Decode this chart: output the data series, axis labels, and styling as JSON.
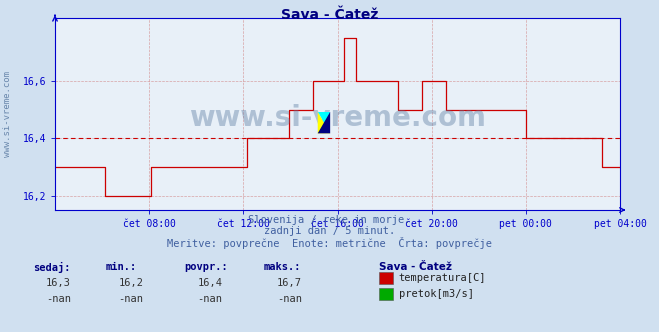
{
  "title": "Sava - Čatež",
  "title_color": "#000080",
  "bg_color": "#d0e0f0",
  "plot_bg_color": "#e8f0f8",
  "grid_color": "#d08080",
  "axis_color": "#0000cc",
  "line_color": "#cc0000",
  "watermark_color": "#5878a0",
  "ylim": [
    16.15,
    16.82
  ],
  "yticks": [
    16.2,
    16.4,
    16.6
  ],
  "xlabel_ticks": [
    "čet 08:00",
    "čet 12:00",
    "čet 16:00",
    "čet 20:00",
    "pet 00:00",
    "pet 04:00"
  ],
  "xtick_positions": [
    0.1667,
    0.3333,
    0.5,
    0.6667,
    0.8333,
    1.0
  ],
  "avg_line": 16.4,
  "avg_line_color": "#cc0000",
  "subtitle1": "Slovenija / reke in morje.",
  "subtitle2": "zadnji dan / 5 minut.",
  "subtitle3": "Meritve: povprečne  Enote: metrične  Črta: povprečje",
  "subtitle_color": "#4060a0",
  "legend_title": "Sava - Čatež",
  "legend_title_color": "#000080",
  "legend_items": [
    {
      "label": "temperatura[C]",
      "color": "#cc0000"
    },
    {
      "label": "pretok[m3/s]",
      "color": "#00aa00"
    }
  ],
  "stats_headers": [
    "sedaj:",
    "min.:",
    "povpr.:",
    "maks.:"
  ],
  "stats_values_temp": [
    "16,3",
    "16,2",
    "16,4",
    "16,7"
  ],
  "stats_values_flow": [
    "-nan",
    "-nan",
    "-nan",
    "-nan"
  ],
  "watermark": "www.si-vreme.com",
  "ylabel_text": "www.si-vreme.com",
  "temperature_data": [
    16.3,
    16.3,
    16.3,
    16.3,
    16.3,
    16.3,
    16.3,
    16.3,
    16.3,
    16.3,
    16.3,
    16.3,
    16.3,
    16.3,
    16.3,
    16.3,
    16.3,
    16.3,
    16.3,
    16.3,
    16.3,
    16.3,
    16.3,
    16.3,
    16.3,
    16.2,
    16.2,
    16.2,
    16.2,
    16.2,
    16.2,
    16.2,
    16.2,
    16.2,
    16.2,
    16.2,
    16.2,
    16.2,
    16.2,
    16.2,
    16.2,
    16.2,
    16.2,
    16.2,
    16.2,
    16.2,
    16.2,
    16.2,
    16.3,
    16.3,
    16.3,
    16.3,
    16.3,
    16.3,
    16.3,
    16.3,
    16.3,
    16.3,
    16.3,
    16.3,
    16.3,
    16.3,
    16.3,
    16.3,
    16.3,
    16.3,
    16.3,
    16.3,
    16.3,
    16.3,
    16.3,
    16.3,
    16.3,
    16.3,
    16.3,
    16.3,
    16.3,
    16.3,
    16.3,
    16.3,
    16.3,
    16.3,
    16.3,
    16.3,
    16.3,
    16.3,
    16.3,
    16.3,
    16.3,
    16.3,
    16.3,
    16.3,
    16.3,
    16.3,
    16.3,
    16.3,
    16.4,
    16.4,
    16.4,
    16.4,
    16.4,
    16.4,
    16.4,
    16.4,
    16.4,
    16.4,
    16.4,
    16.4,
    16.4,
    16.4,
    16.4,
    16.4,
    16.4,
    16.4,
    16.4,
    16.4,
    16.4,
    16.5,
    16.5,
    16.5,
    16.5,
    16.5,
    16.5,
    16.5,
    16.5,
    16.5,
    16.5,
    16.5,
    16.5,
    16.6,
    16.6,
    16.6,
    16.6,
    16.6,
    16.6,
    16.6,
    16.6,
    16.6,
    16.6,
    16.6,
    16.6,
    16.6,
    16.6,
    16.6,
    16.75,
    16.75,
    16.75,
    16.75,
    16.75,
    16.75,
    16.6,
    16.6,
    16.6,
    16.6,
    16.6,
    16.6,
    16.6,
    16.6,
    16.6,
    16.6,
    16.6,
    16.6,
    16.6,
    16.6,
    16.6,
    16.6,
    16.6,
    16.6,
    16.6,
    16.6,
    16.6,
    16.5,
    16.5,
    16.5,
    16.5,
    16.5,
    16.5,
    16.5,
    16.5,
    16.5,
    16.5,
    16.5,
    16.5,
    16.6,
    16.6,
    16.6,
    16.6,
    16.6,
    16.6,
    16.6,
    16.6,
    16.6,
    16.6,
    16.6,
    16.6,
    16.5,
    16.5,
    16.5,
    16.5,
    16.5,
    16.5,
    16.5,
    16.5,
    16.5,
    16.5,
    16.5,
    16.5,
    16.5,
    16.5,
    16.5,
    16.5,
    16.5,
    16.5,
    16.5,
    16.5,
    16.5,
    16.5,
    16.5,
    16.5,
    16.5,
    16.5,
    16.5,
    16.5,
    16.5,
    16.5,
    16.5,
    16.5,
    16.5,
    16.5,
    16.5,
    16.5,
    16.5,
    16.5,
    16.5,
    16.5,
    16.4,
    16.4,
    16.4,
    16.4,
    16.4,
    16.4,
    16.4,
    16.4,
    16.4,
    16.4,
    16.4,
    16.4,
    16.4,
    16.4,
    16.4,
    16.4,
    16.4,
    16.4,
    16.4,
    16.4,
    16.4,
    16.4,
    16.4,
    16.4,
    16.4,
    16.4,
    16.4,
    16.4,
    16.4,
    16.4,
    16.4,
    16.4,
    16.4,
    16.4,
    16.4,
    16.4,
    16.4,
    16.4,
    16.3,
    16.3,
    16.3,
    16.3,
    16.3,
    16.3,
    16.3,
    16.3,
    16.3,
    16.3
  ]
}
